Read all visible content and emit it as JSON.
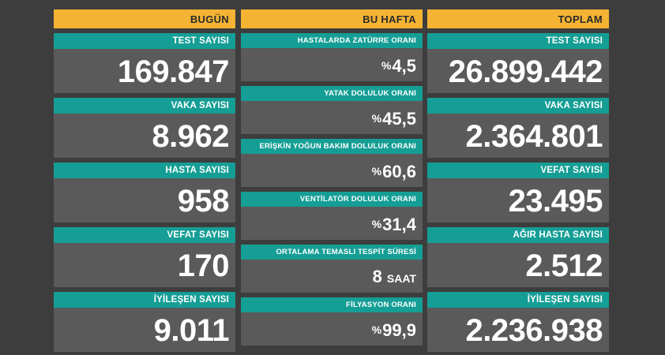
{
  "today": {
    "header": "BUGÜN",
    "cards": [
      {
        "label": "TEST SAYISI",
        "value": "169.847"
      },
      {
        "label": "VAKA SAYISI",
        "value": "8.962"
      },
      {
        "label": "HASTA SAYISI",
        "value": "958"
      },
      {
        "label": "VEFAT SAYISI",
        "value": "170"
      },
      {
        "label": "İYİLEŞEN SAYISI",
        "value": "9.011"
      }
    ]
  },
  "week": {
    "header": "BU HAFTA",
    "cards": [
      {
        "label": "HASTALARDA ZATÜRRE ORANI",
        "prefix": "%",
        "value": "4,5"
      },
      {
        "label": "YATAK DOLULUK ORANI",
        "prefix": "%",
        "value": "45,5"
      },
      {
        "label": "ERİŞKİN YOĞUN BAKIM DOLULUK ORANI",
        "prefix": "%",
        "value": "60,6"
      },
      {
        "label": "VENTİLATÖR DOLULUK ORANI",
        "prefix": "%",
        "value": "31,4"
      },
      {
        "label": "ORTALAMA TEMASLI TESPİT SÜRESİ",
        "value": "8",
        "unit": "SAAT"
      },
      {
        "label": "FİLYASYON ORANI",
        "prefix": "%",
        "value": "99,9"
      }
    ]
  },
  "total": {
    "header": "TOPLAM",
    "cards": [
      {
        "label": "TEST SAYISI",
        "value": "26.899.442"
      },
      {
        "label": "VAKA SAYISI",
        "value": "2.364.801"
      },
      {
        "label": "VEFAT SAYISI",
        "value": "23.495"
      },
      {
        "label": "AĞIR HASTA SAYISI",
        "value": "2.512"
      },
      {
        "label": "İYİLEŞEN SAYISI",
        "value": "2.236.938"
      }
    ]
  }
}
